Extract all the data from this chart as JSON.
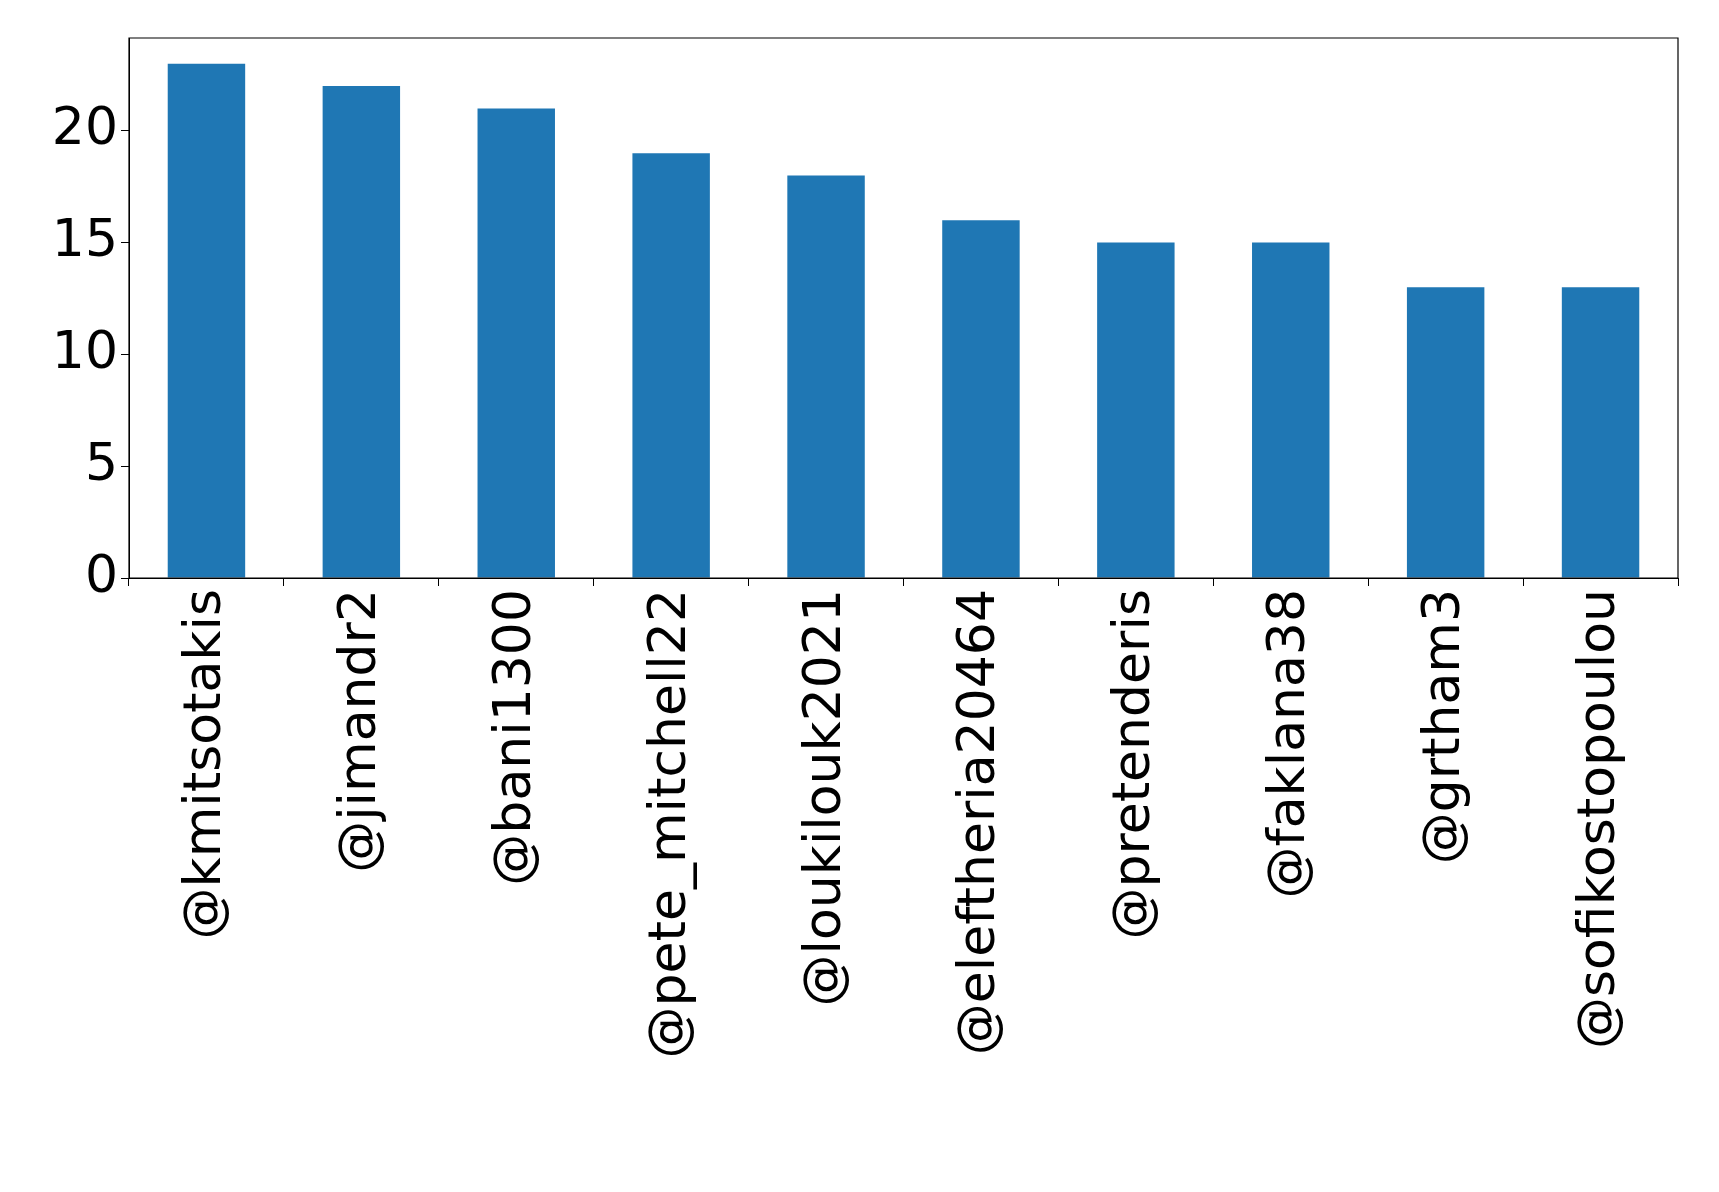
{
  "chart_data": {
    "type": "bar",
    "categories": [
      "@kmitsotakis",
      "@jimandr2",
      "@bani1300",
      "@pete_mitchell22",
      "@loukilouk2021",
      "@eleftheria20464",
      "@pretenderis",
      "@faklana38",
      "@grtham3",
      "@sofikostopoulou"
    ],
    "values": [
      23,
      22,
      21,
      19,
      18,
      16,
      15,
      15,
      13,
      13
    ],
    "color": "#1f77b4",
    "ylim": [
      0,
      24.15
    ],
    "yticks": [
      0,
      5,
      10,
      15,
      20
    ],
    "grid": false,
    "legend": false
  }
}
